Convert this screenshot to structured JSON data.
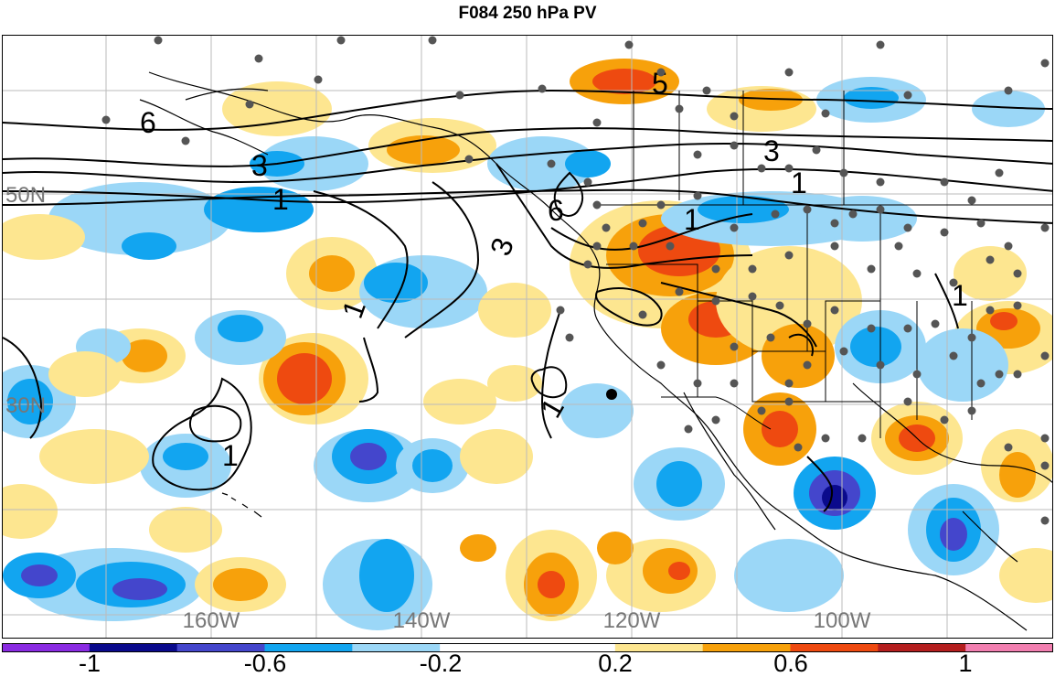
{
  "title": "F084 250 hPa PV",
  "latitude_labels": [
    "50N",
    "30N"
  ],
  "longitude_labels": [
    "160W",
    "140W",
    "120W",
    "100W"
  ],
  "colorbar": {
    "colors": [
      "#8a2be2",
      "#0a0a8c",
      "#4446cc",
      "#12a5f0",
      "#9bd7f7",
      "#ffffff",
      "#ffffff",
      "#fde690",
      "#f7a10b",
      "#ee4a10",
      "#b41e1e",
      "#f27fb0"
    ],
    "tick_labels": [
      "-1",
      "-0.6",
      "-0.2",
      "0.2",
      "0.6",
      "1"
    ]
  },
  "contour_labels": [
    "6",
    "3",
    "1",
    "5",
    "3",
    "1",
    "6",
    "3",
    "1",
    "1",
    "1",
    "1",
    "1"
  ],
  "palette": {
    "neg_light": "#9bd7f7",
    "neg_mid": "#12a5f0",
    "neg_strong": "#4446cc",
    "neg_extreme": "#0a0a8c",
    "pos_light": "#fde690",
    "pos_mid": "#f7a10b",
    "pos_strong": "#ee4a10",
    "station_dot": "#555555",
    "contour": "#000000",
    "grid": "#bbbbbb"
  }
}
